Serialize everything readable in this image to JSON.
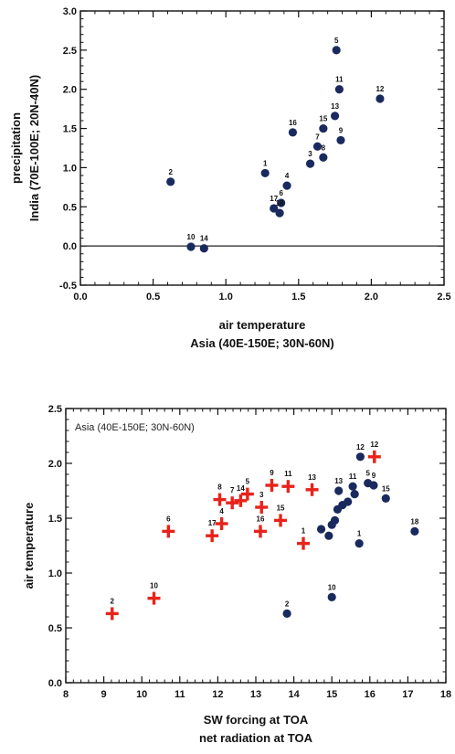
{
  "chart_data": [
    {
      "type": "scatter",
      "title": "",
      "xlabel": "air temperature",
      "xlabel_line2": "Asia (40E-150E; 30N-60N)",
      "ylabel": "precipitation",
      "ylabel_line2": "India (70E-100E; 20N-40N)",
      "xlim": [
        0.0,
        2.5
      ],
      "ylim": [
        -0.5,
        3.0
      ],
      "xticks": [
        "0.0",
        "0.5",
        "1.0",
        "1.5",
        "2.0",
        "2.5"
      ],
      "yticks": [
        "-0.5",
        "0.0",
        "0.5",
        "1.0",
        "1.5",
        "2.0",
        "2.5",
        "3.0"
      ],
      "zero_line": true,
      "grid": false,
      "series": [
        {
          "marker": "circle",
          "color": "#1a2a5e",
          "points": [
            {
              "label": "1",
              "x": 1.27,
              "y": 0.93
            },
            {
              "label": "2",
              "x": 0.62,
              "y": 0.82
            },
            {
              "label": "3",
              "x": 1.58,
              "y": 1.05
            },
            {
              "label": "4",
              "x": 1.42,
              "y": 0.77
            },
            {
              "label": "5",
              "x": 1.76,
              "y": 2.5
            },
            {
              "label": "6",
              "x": 1.38,
              "y": 0.55
            },
            {
              "label": "7",
              "x": 1.63,
              "y": 1.27
            },
            {
              "label": "8",
              "x": 1.67,
              "y": 1.13
            },
            {
              "label": "9",
              "x": 1.79,
              "y": 1.35
            },
            {
              "label": "10",
              "x": 0.76,
              "y": -0.01
            },
            {
              "label": "11",
              "x": 1.78,
              "y": 2.0
            },
            {
              "label": "12",
              "x": 2.06,
              "y": 1.88
            },
            {
              "label": "13",
              "x": 1.75,
              "y": 1.66
            },
            {
              "label": "14",
              "x": 0.85,
              "y": -0.03
            },
            {
              "label": "15",
              "x": 1.67,
              "y": 1.5
            },
            {
              "label": "16",
              "x": 1.46,
              "y": 1.45
            },
            {
              "label": "17",
              "x": 1.33,
              "y": 0.48
            },
            {
              "label": "18",
              "x": 1.37,
              "y": 0.42
            }
          ]
        }
      ]
    },
    {
      "type": "scatter",
      "title": "",
      "annotation": "Asia (40E-150E; 30N-60N)",
      "xlabel": "SW forcing at TOA",
      "xlabel_line2": "net radiation at TOA",
      "ylabel": "air temperature",
      "xlim": [
        8,
        18
      ],
      "ylim": [
        0.0,
        2.5
      ],
      "xticks": [
        "8",
        "9",
        "10",
        "11",
        "12",
        "13",
        "14",
        "15",
        "16",
        "17",
        "18"
      ],
      "yticks": [
        "0.0",
        "0.5",
        "1.0",
        "1.5",
        "2.0",
        "2.5"
      ],
      "grid": false,
      "series": [
        {
          "marker": "plus",
          "color": "#e8231b",
          "points": [
            {
              "label": "1",
              "x": 14.25,
              "y": 1.27
            },
            {
              "label": "2",
              "x": 9.22,
              "y": 0.63
            },
            {
              "label": "3",
              "x": 13.15,
              "y": 1.6
            },
            {
              "label": "4",
              "x": 12.1,
              "y": 1.45
            },
            {
              "label": "5",
              "x": 12.78,
              "y": 1.72
            },
            {
              "label": "6",
              "x": 10.7,
              "y": 1.38
            },
            {
              "label": "7",
              "x": 12.38,
              "y": 1.64
            },
            {
              "label": "8",
              "x": 12.05,
              "y": 1.67
            },
            {
              "label": "9",
              "x": 13.42,
              "y": 1.8
            },
            {
              "label": "10",
              "x": 10.32,
              "y": 0.77
            },
            {
              "label": "11",
              "x": 13.85,
              "y": 1.79
            },
            {
              "label": "12",
              "x": 16.12,
              "y": 2.06
            },
            {
              "label": "13",
              "x": 14.48,
              "y": 1.76
            },
            {
              "label": "14",
              "x": 12.6,
              "y": 1.66
            },
            {
              "label": "15",
              "x": 13.65,
              "y": 1.48
            },
            {
              "label": "16",
              "x": 13.12,
              "y": 1.38
            },
            {
              "label": "17",
              "x": 11.85,
              "y": 1.34
            }
          ]
        },
        {
          "marker": "circle",
          "color": "#1a2a5e",
          "points": [
            {
              "label": "1",
              "x": 15.72,
              "y": 1.27
            },
            {
              "label": "2",
              "x": 13.82,
              "y": 0.63
            },
            {
              "label": "5",
              "x": 15.95,
              "y": 1.82
            },
            {
              "label": "9",
              "x": 16.1,
              "y": 1.8
            },
            {
              "label": "10",
              "x": 15.0,
              "y": 0.78
            },
            {
              "label": "11",
              "x": 15.55,
              "y": 1.79
            },
            {
              "label": "12",
              "x": 15.75,
              "y": 2.06
            },
            {
              "label": "13",
              "x": 15.18,
              "y": 1.75
            },
            {
              "label": "15",
              "x": 16.42,
              "y": 1.68
            },
            {
              "label": "18",
              "x": 17.18,
              "y": 1.38
            },
            {
              "label": "",
              "x": 14.72,
              "y": 1.4
            },
            {
              "label": "",
              "x": 14.92,
              "y": 1.34
            },
            {
              "label": "",
              "x": 15.0,
              "y": 1.44
            },
            {
              "label": "",
              "x": 15.08,
              "y": 1.48
            },
            {
              "label": "",
              "x": 15.15,
              "y": 1.58
            },
            {
              "label": "",
              "x": 15.28,
              "y": 1.62
            },
            {
              "label": "",
              "x": 15.42,
              "y": 1.65
            },
            {
              "label": "",
              "x": 15.6,
              "y": 1.72
            }
          ]
        }
      ]
    }
  ]
}
